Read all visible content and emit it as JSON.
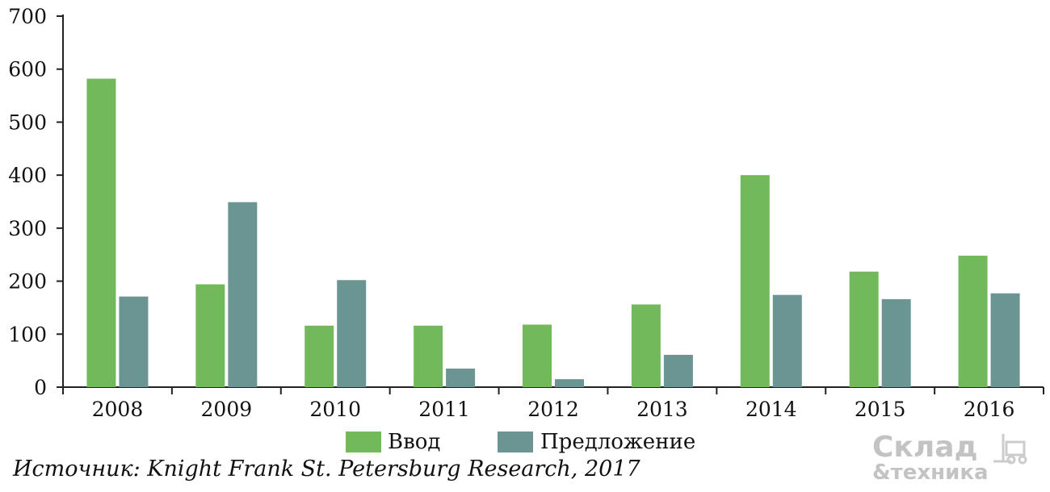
{
  "chart_data": {
    "type": "bar",
    "categories": [
      "2008",
      "2009",
      "2010",
      "2011",
      "2012",
      "2013",
      "2014",
      "2015",
      "2016"
    ],
    "series": [
      {
        "name": "Ввод",
        "values": [
          582,
          194,
          116,
          116,
          118,
          156,
          400,
          218,
          248
        ],
        "color": "#72b95c"
      },
      {
        "name": "Предложение",
        "values": [
          171,
          349,
          202,
          35,
          15,
          61,
          174,
          166,
          177
        ],
        "color": "#6b9593"
      }
    ],
    "ylim": [
      0,
      700
    ],
    "yticks": [
      "0",
      "100",
      "200",
      "300",
      "400",
      "500",
      "600",
      "700"
    ],
    "title": "",
    "xlabel": "",
    "ylabel": "",
    "grid": false,
    "legend": "bottom-center"
  },
  "source": "Источник: Knight Frank St. Petersburg Research, 2017",
  "watermark": {
    "line1": "Склад",
    "line2": "&техника"
  }
}
